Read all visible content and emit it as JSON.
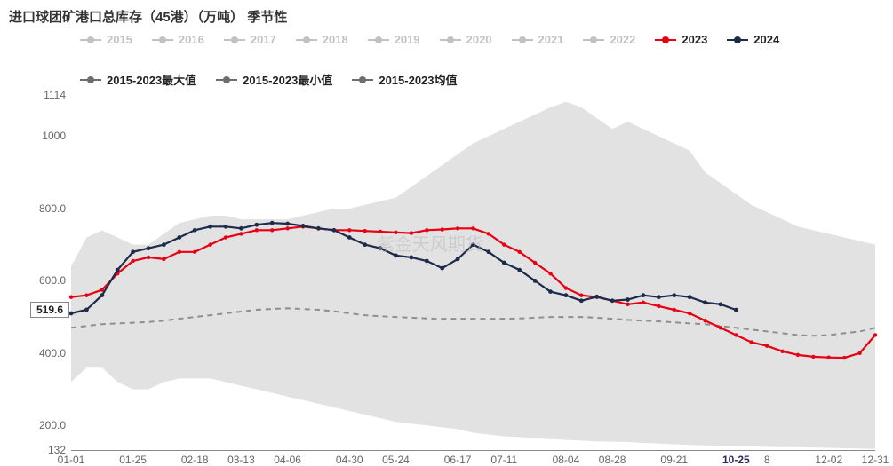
{
  "title": "进口球团矿港口总库存（45港）（万吨） 季节性",
  "title_fontsize": 15,
  "watermark": "紫金天风期货",
  "value_label": "519.6",
  "legend_inactive_color": "#c2c2c2",
  "legend_grey_color": "#6d6d6d",
  "legend": {
    "inactive": [
      "2015",
      "2016",
      "2017",
      "2018",
      "2019",
      "2020",
      "2021",
      "2022"
    ],
    "series": [
      {
        "label": "2023",
        "color": "#e60012"
      },
      {
        "label": "2024",
        "color": "#1c2b4a"
      }
    ],
    "stats": [
      "2015-2023最大值",
      "2015-2023最小值",
      "2015-2023均值"
    ]
  },
  "y_axis": {
    "min": 132,
    "max": 1114,
    "ticks": [
      132,
      200.0,
      400.0,
      600.0,
      800.0,
      1000,
      1114
    ]
  },
  "x_axis": {
    "min": 0,
    "max": 52,
    "ticks": [
      {
        "pos": 0,
        "label": "01-01"
      },
      {
        "pos": 4,
        "label": "01-25"
      },
      {
        "pos": 8,
        "label": "02-18"
      },
      {
        "pos": 11,
        "label": "03-13"
      },
      {
        "pos": 14,
        "label": "04-06"
      },
      {
        "pos": 18,
        "label": "04-30"
      },
      {
        "pos": 21,
        "label": "05-24"
      },
      {
        "pos": 25,
        "label": "06-17"
      },
      {
        "pos": 28,
        "label": "07-11"
      },
      {
        "pos": 32,
        "label": "08-04"
      },
      {
        "pos": 35,
        "label": "08-28"
      },
      {
        "pos": 39,
        "label": "09-21"
      },
      {
        "pos": 43,
        "label": "10-25",
        "current": true
      },
      {
        "pos": 45,
        "label": "8"
      },
      {
        "pos": 49,
        "label": "12-02"
      },
      {
        "pos": 52,
        "label": "12-31"
      }
    ]
  },
  "band": {
    "fill": "#d8d8d8",
    "fill_opacity": 0.75,
    "upper": [
      640,
      720,
      740,
      720,
      700,
      700,
      730,
      760,
      770,
      780,
      780,
      770,
      770,
      770,
      770,
      780,
      790,
      800,
      800,
      810,
      820,
      830,
      860,
      890,
      920,
      950,
      980,
      1000,
      1020,
      1040,
      1060,
      1080,
      1095,
      1080,
      1050,
      1020,
      1040,
      1020,
      1000,
      980,
      960,
      900,
      870,
      840,
      810,
      790,
      770,
      750,
      740,
      730,
      720,
      710,
      700
    ],
    "lower": [
      320,
      360,
      360,
      320,
      300,
      300,
      320,
      330,
      330,
      330,
      320,
      310,
      300,
      290,
      280,
      270,
      260,
      250,
      240,
      230,
      220,
      210,
      205,
      200,
      195,
      190,
      180,
      175,
      170,
      168,
      165,
      162,
      160,
      158,
      156,
      155,
      154,
      152,
      150,
      148,
      146,
      145,
      144,
      143,
      142,
      141,
      140,
      140,
      139,
      138,
      137,
      136,
      135
    ]
  },
  "mean": {
    "color": "#8f8f8f",
    "width": 2,
    "dash": "6,5",
    "values": [
      470,
      475,
      480,
      482,
      484,
      486,
      490,
      495,
      500,
      505,
      510,
      515,
      520,
      522,
      524,
      522,
      520,
      516,
      510,
      505,
      502,
      500,
      498,
      496,
      495,
      495,
      495,
      495,
      495,
      496,
      498,
      500,
      500,
      500,
      498,
      495,
      492,
      490,
      488,
      485,
      482,
      480,
      475,
      470,
      465,
      460,
      455,
      450,
      448,
      450,
      455,
      460,
      470
    ]
  },
  "series_2023": {
    "color": "#e60012",
    "width": 2.2,
    "marker_r": 2.2,
    "values": [
      555,
      560,
      575,
      620,
      655,
      665,
      660,
      680,
      680,
      700,
      720,
      730,
      740,
      740,
      745,
      750,
      745,
      740,
      740,
      738,
      736,
      734,
      732,
      740,
      742,
      745,
      745,
      730,
      700,
      680,
      650,
      620,
      580,
      560,
      555,
      545,
      535,
      540,
      530,
      520,
      510,
      490,
      470,
      450,
      430,
      420,
      405,
      395,
      390,
      388,
      387,
      400,
      450
    ]
  },
  "series_2024": {
    "color": "#1c2b4a",
    "width": 2.2,
    "marker_r": 2.4,
    "values": [
      510,
      520,
      560,
      630,
      680,
      690,
      700,
      720,
      740,
      750,
      750,
      745,
      755,
      760,
      758,
      752,
      745,
      740,
      720,
      700,
      690,
      670,
      665,
      655,
      635,
      660,
      700,
      680,
      650,
      630,
      600,
      570,
      560,
      545,
      556,
      545,
      548,
      560,
      555,
      560,
      555,
      540,
      535,
      519.6
    ]
  },
  "colors": {
    "background": "#ffffff",
    "axis": "#888888",
    "text": "#333333"
  }
}
